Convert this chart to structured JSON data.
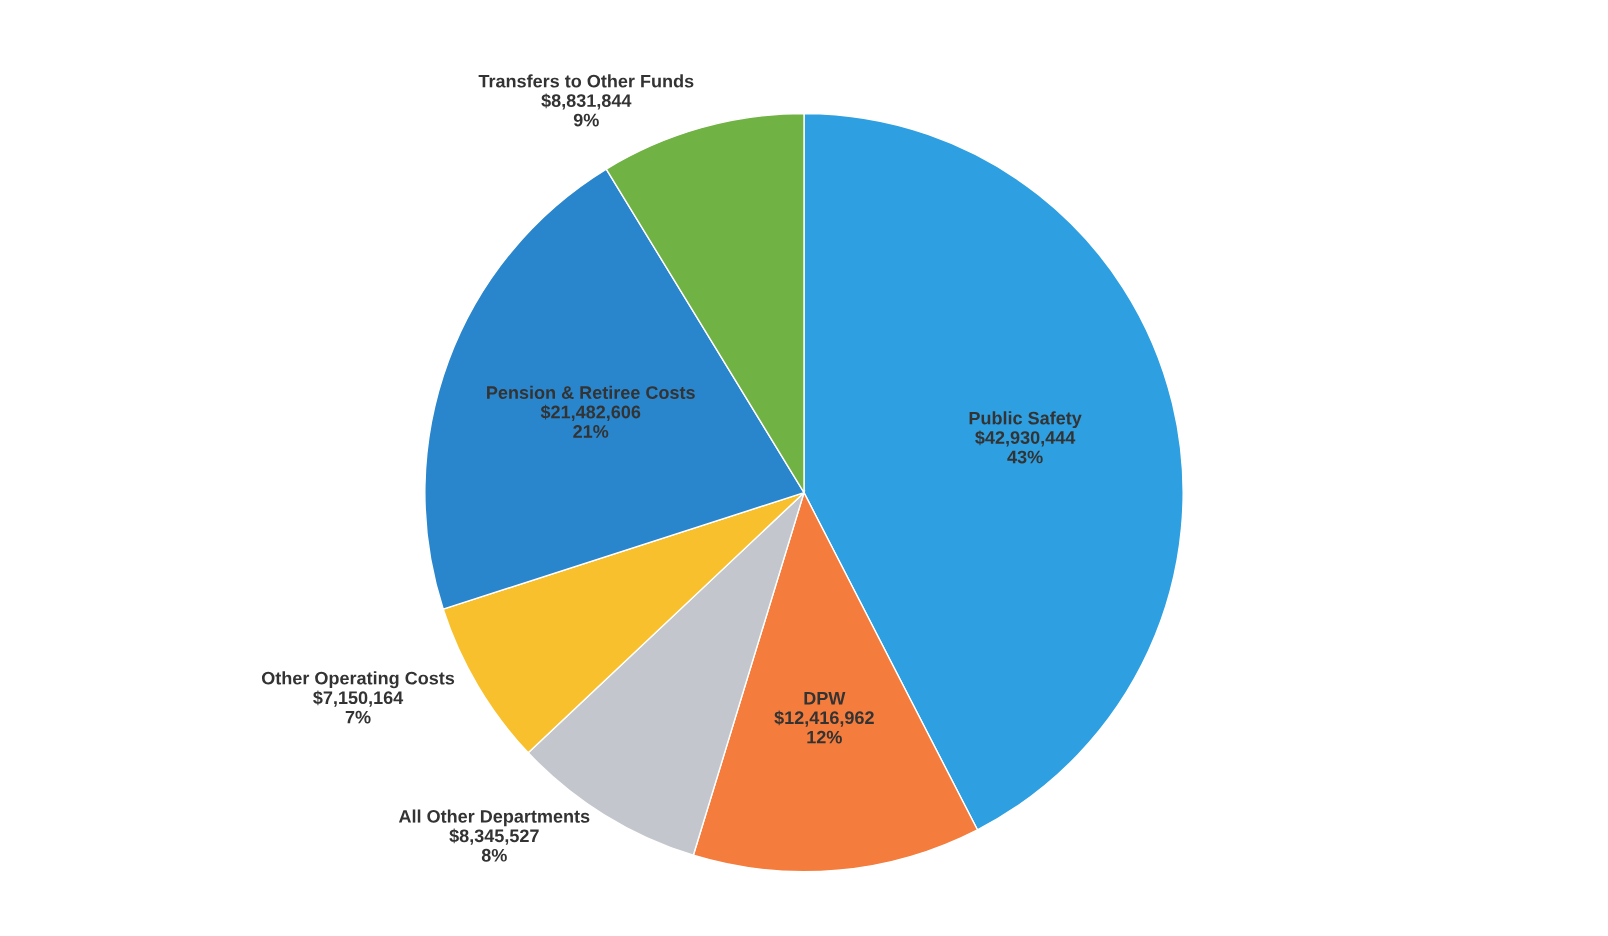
{
  "chart_data": {
    "type": "pie",
    "categories": [
      "Public Safety",
      "DPW",
      "All Other Departments",
      "Other Operating Costs",
      "Pension & Retiree Costs",
      "Transfers to Other Funds"
    ],
    "values": [
      42930444,
      12416962,
      8345527,
      7150164,
      21482606,
      8831844
    ],
    "value_labels": [
      "$42,930,444\n43%",
      "$12,416,962\n12%",
      "$8,345,527\n8%",
      "$7,150,164\n7%",
      "$21,482,606\n21%",
      "$8,831,844\n9%"
    ],
    "colors": [
      "#2e9fe0",
      "#f47c3c",
      "#c3c6cc",
      "#f8c02c",
      "#2a86cc",
      "#70b244"
    ]
  }
}
